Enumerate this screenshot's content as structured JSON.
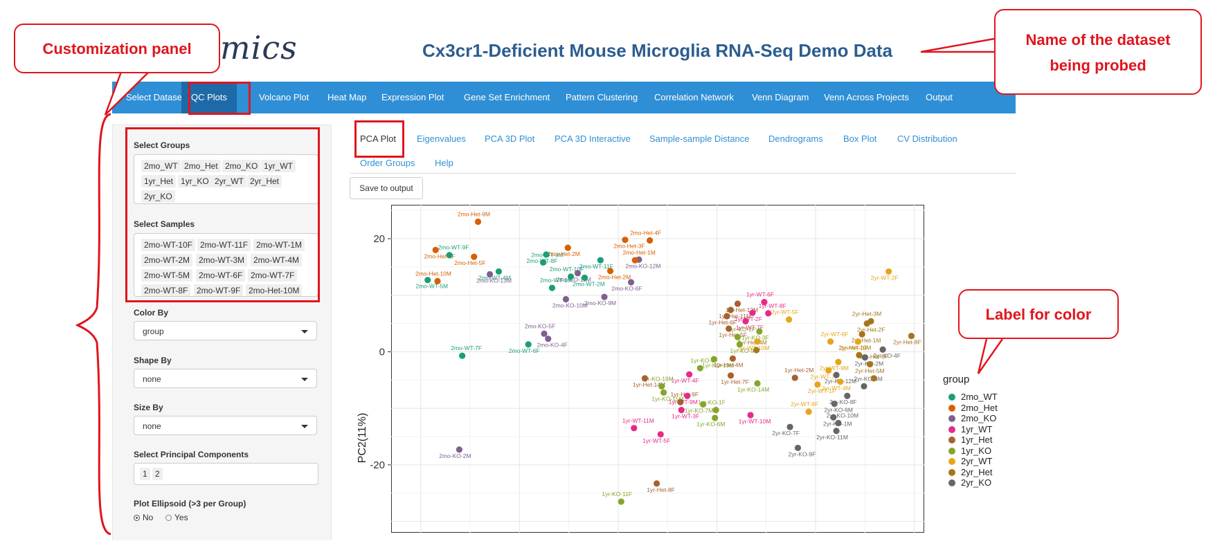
{
  "app": {
    "logo_text": "mics",
    "dataset_title": "Cx3cr1-Deficient Mouse Microglia RNA-Seq Demo Data"
  },
  "nav": {
    "items": [
      {
        "label": "Select Dataset"
      },
      {
        "label": "QC Plots"
      },
      {
        "label": "Volcano Plot"
      },
      {
        "label": "Heat Map"
      },
      {
        "label": "Expression Plot"
      },
      {
        "label": "Gene Set Enrichment"
      },
      {
        "label": "Pattern Clustering"
      },
      {
        "label": "Correlation Network"
      },
      {
        "label": "Venn Diagram"
      },
      {
        "label": "Venn Across Projects"
      },
      {
        "label": "Output"
      }
    ]
  },
  "sidebar": {
    "groups_label": "Select Groups",
    "groups": [
      "2mo_WT",
      "2mo_Het",
      "2mo_KO",
      "1yr_WT",
      "1yr_Het",
      "1yr_KO",
      "2yr_WT",
      "2yr_Het",
      "2yr_KO"
    ],
    "samples_label": "Select Samples",
    "samples": [
      "2mo-WT-10F",
      "2mo-WT-11F",
      "2mo-WT-1M",
      "2mo-WT-2M",
      "2mo-WT-3M",
      "2mo-WT-4M",
      "2mo-WT-5M",
      "2mo-WT-6F",
      "2mo-WT-7F",
      "2mo-WT-8F",
      "2mo-WT-9F",
      "2mo-Het-10M"
    ],
    "color_by_label": "Color By",
    "color_by_value": "group",
    "shape_by_label": "Shape By",
    "shape_by_value": "none",
    "size_by_label": "Size By",
    "size_by_value": "none",
    "pc_label": "Select Principal Components",
    "pc_values": [
      "1",
      "2"
    ],
    "ellipsoid_label": "Plot Ellipsoid (>3 per Group)",
    "ellipsoid_no": "No",
    "ellipsoid_yes": "Yes",
    "ellipsoid_selected": "No"
  },
  "tabs": {
    "items": [
      {
        "label": "PCA Plot"
      },
      {
        "label": "Eigenvalues"
      },
      {
        "label": "PCA 3D Plot"
      },
      {
        "label": "PCA 3D Interactive"
      },
      {
        "label": "Sample-sample Distance"
      },
      {
        "label": "Dendrograms"
      },
      {
        "label": "Box Plot"
      },
      {
        "label": "CV Distribution"
      },
      {
        "label": "Order Groups"
      },
      {
        "label": "Help"
      }
    ]
  },
  "save_button": "Save to output",
  "annotations": {
    "customization": "Customization panel",
    "dataset_name": "Name of the dataset being probed",
    "color_label": "Label for color"
  },
  "colors": {
    "accent": "#2f8fd6",
    "annotation": "#e0151d"
  },
  "chart_data": {
    "type": "scatter",
    "ylabel": "PC2(11%)",
    "xlabel": "",
    "ylim": [
      -32,
      26
    ],
    "yticks": [
      20,
      0,
      -20
    ],
    "legend_title": "group",
    "legend_position": "right",
    "groups": [
      {
        "name": "2mo_WT",
        "color": "#1b9e77"
      },
      {
        "name": "2mo_Het",
        "color": "#d95f02"
      },
      {
        "name": "2mo_KO",
        "color": "#7f5f8f"
      },
      {
        "name": "1yr_WT",
        "color": "#e7298a"
      },
      {
        "name": "1yr_Het",
        "color": "#a6612f"
      },
      {
        "name": "1yr_KO",
        "color": "#84a62a"
      },
      {
        "name": "2yr_WT",
        "color": "#e6a51b"
      },
      {
        "name": "2yr_Het",
        "color": "#a6761d"
      },
      {
        "name": "2yr_KO",
        "color": "#666666"
      }
    ],
    "points": [
      {
        "label": "2mo-Het-9M",
        "group": "2mo_Het",
        "x": -14.2,
        "y": 23.0
      },
      {
        "label": "2mo-Het-6F",
        "group": "2mo_Het",
        "x": -18.5,
        "y": 18.0
      },
      {
        "label": "2mo-Het-5F",
        "group": "2mo_Het",
        "x": -14.6,
        "y": 16.8
      },
      {
        "label": "2mo-WT-9F",
        "group": "2mo_WT",
        "x": -17.1,
        "y": 17.1
      },
      {
        "label": "2mo-WT-4M",
        "group": "2mo_WT",
        "x": -12.1,
        "y": 14.2
      },
      {
        "label": "2mo-WT-5M",
        "group": "2mo_WT",
        "x": -19.3,
        "y": 12.7
      },
      {
        "label": "2mo-Het-10M",
        "group": "2mo_Het",
        "x": -18.3,
        "y": 12.5
      },
      {
        "label": "2mo-KO-13M",
        "group": "2mo_KO",
        "x": -13.0,
        "y": 13.7
      },
      {
        "label": "2mo-WT-8F",
        "group": "2mo_WT",
        "x": -7.3,
        "y": 17.2
      },
      {
        "label": "2mo-WT-3M",
        "group": "2mo_WT",
        "x": -7.6,
        "y": 15.8
      },
      {
        "label": "2mo-Het-2M",
        "group": "2mo_Het",
        "x": -5.1,
        "y": 18.4
      },
      {
        "label": "2mo-Het-3F",
        "group": "2mo_Het",
        "x": 0.7,
        "y": 19.8
      },
      {
        "label": "2mo-Het-4F",
        "group": "2mo_Het",
        "x": 3.2,
        "y": 19.7
      },
      {
        "label": "2mo-KO-12M",
        "group": "2mo_KO",
        "x": 2.1,
        "y": 16.3
      },
      {
        "label": "2mo-WT-11F",
        "group": "2mo_WT",
        "x": -1.8,
        "y": 16.2
      },
      {
        "label": "2mo-Het-1M",
        "group": "2mo_Het",
        "x": 1.7,
        "y": 16.2
      },
      {
        "label": "2mo-KO-11M",
        "group": "2mo_KO",
        "x": -4.1,
        "y": 13.9
      },
      {
        "label": "2mo-Het-2M",
        "group": "2mo_Het",
        "x": -0.8,
        "y": 14.3
      },
      {
        "label": "2mo-WT-10F",
        "group": "2mo_WT",
        "x": -4.8,
        "y": 13.3
      },
      {
        "label": "2mo-WT-2M",
        "group": "2mo_WT",
        "x": -3.4,
        "y": 13.1
      },
      {
        "label": "2mo-KO-6F",
        "group": "2mo_KO",
        "x": 1.3,
        "y": 12.3
      },
      {
        "label": "2mo-WT-1M",
        "group": "2mo_WT",
        "x": -6.7,
        "y": 11.3
      },
      {
        "label": "2mo-KO-9M",
        "group": "2mo_KO",
        "x": -1.4,
        "y": 9.7
      },
      {
        "label": "2mo-KO-10M",
        "group": "2mo_KO",
        "x": -5.3,
        "y": 9.3
      },
      {
        "label": "2mo-KO-5F",
        "group": "2mo_KO",
        "x": -7.5,
        "y": 3.2
      },
      {
        "label": "2mo-KO-4F",
        "group": "2mo_KO",
        "x": -7.1,
        "y": 2.3
      },
      {
        "label": "2mo-WT-6F",
        "group": "2mo_WT",
        "x": -9.1,
        "y": 1.3
      },
      {
        "label": "2mo-WT-7F",
        "group": "2mo_WT",
        "x": -15.8,
        "y": -0.7
      },
      {
        "label": "2mo-KO-2M",
        "group": "2mo_KO",
        "x": -16.1,
        "y": -17.3
      },
      {
        "label": "1yr-Het-12M",
        "group": "1yr_Het",
        "x": 12.1,
        "y": 8.5
      },
      {
        "label": "1yr-WT-6F",
        "group": "1yr_WT",
        "x": 14.8,
        "y": 8.8
      },
      {
        "label": "1yr-Het-11M",
        "group": "1yr_Het",
        "x": 11.4,
        "y": 7.4
      },
      {
        "label": "1yr-WT-2F",
        "group": "1yr_WT",
        "x": 13.6,
        "y": 6.9
      },
      {
        "label": "1yr-WT-8F",
        "group": "1yr_WT",
        "x": 15.2,
        "y": 6.8
      },
      {
        "label": "1yr-Het-6F",
        "group": "1yr_Het",
        "x": 11.0,
        "y": 6.3
      },
      {
        "label": "1yr-WT-7F",
        "group": "1yr_WT",
        "x": 12.9,
        "y": 5.4
      },
      {
        "label": "2yr-WT-5F",
        "group": "2yr_WT",
        "x": 17.3,
        "y": 5.7
      },
      {
        "label": "1yr-Het-5F",
        "group": "1yr_Het",
        "x": 11.2,
        "y": 4.1
      },
      {
        "label": "1yr-KO-3F",
        "group": "1yr_KO",
        "x": 14.3,
        "y": 3.6
      },
      {
        "label": "1yr-KO-2F",
        "group": "1yr_KO",
        "x": 12.1,
        "y": 2.6
      },
      {
        "label": "2yr-WT-10M",
        "group": "2yr_WT",
        "x": 14.1,
        "y": 1.8
      },
      {
        "label": "1yr-KO-9F",
        "group": "1yr_KO",
        "x": 12.3,
        "y": 1.3
      },
      {
        "label": "2yr-Het-4M",
        "group": "2yr_Het",
        "x": 14.0,
        "y": 0.3
      },
      {
        "label": "1yr-KO-13M",
        "group": "1yr_KO",
        "x": 9.7,
        "y": -1.3
      },
      {
        "label": "1yr-Het-4M",
        "group": "1yr_Het",
        "x": 11.6,
        "y": -1.2
      },
      {
        "label": "1yr-KO-8F",
        "group": "1yr_KO",
        "x": 8.3,
        "y": -2.9
      },
      {
        "label": "1yr-WT-4F",
        "group": "1yr_WT",
        "x": 7.2,
        "y": -4.0
      },
      {
        "label": "1yr-Het-14M",
        "group": "1yr_Het",
        "x": 2.7,
        "y": -4.7
      },
      {
        "label": "1yr-KO-16M",
        "group": "1yr_KO",
        "x": 4.4,
        "y": -6.1
      },
      {
        "label": "1yr-KO-15M",
        "group": "1yr_KO",
        "x": 4.6,
        "y": -7.2
      },
      {
        "label": "1yr-WT-9M",
        "group": "1yr_WT",
        "x": 7.0,
        "y": -7.8
      },
      {
        "label": "1yr-Het-9F",
        "group": "1yr_Het",
        "x": 6.3,
        "y": -8.9
      },
      {
        "label": "1yr-KO-7M",
        "group": "1yr_KO",
        "x": 8.6,
        "y": -9.3
      },
      {
        "label": "1yr-WT-3F",
        "group": "1yr_WT",
        "x": 6.4,
        "y": -10.3
      },
      {
        "label": "1yr-KO-1F",
        "group": "1yr_KO",
        "x": 9.9,
        "y": -10.3
      },
      {
        "label": "1yr-WT-10M",
        "group": "1yr_WT",
        "x": 13.4,
        "y": -11.2
      },
      {
        "label": "1yr-KO-6M",
        "group": "1yr_KO",
        "x": 9.8,
        "y": -11.7
      },
      {
        "label": "1yr-WT-11M",
        "group": "1yr_WT",
        "x": 1.6,
        "y": -13.5
      },
      {
        "label": "1yr-WT-5F",
        "group": "1yr_WT",
        "x": 4.3,
        "y": -14.6
      },
      {
        "label": "1yr-Het-8F",
        "group": "1yr_Het",
        "x": 3.9,
        "y": -23.3
      },
      {
        "label": "1yr-KO-11F",
        "group": "1yr_KO",
        "x": 0.3,
        "y": -26.5
      },
      {
        "label": "1yr-Het-7F",
        "group": "1yr_Het",
        "x": 11.4,
        "y": -4.2
      },
      {
        "label": "1yr-KO-14M",
        "group": "1yr_KO",
        "x": 14.1,
        "y": -5.6
      },
      {
        "label": "1yr-Het-2M",
        "group": "1yr_Het",
        "x": 17.9,
        "y": -4.6
      },
      {
        "label": "2yr-WT-2F",
        "group": "2yr_WT",
        "x": 27.4,
        "y": 14.2
      },
      {
        "label": "2yr-Het-2F",
        "group": "2yr_Het",
        "x": 25.2,
        "y": 5.0
      },
      {
        "label": "2yr-Het-3M",
        "group": "2yr_Het",
        "x": 25.6,
        "y": 5.4
      },
      {
        "label": "2yr-Het-1M",
        "group": "2yr_Het",
        "x": 24.7,
        "y": 3.1
      },
      {
        "label": "2yr-Het-8F",
        "group": "2yr_Het",
        "x": 29.7,
        "y": 2.8
      },
      {
        "label": "2yr-WT-6F",
        "group": "2yr_WT",
        "x": 21.5,
        "y": 1.8
      },
      {
        "label": "2yr-WT-3F",
        "group": "2yr_WT",
        "x": 24.3,
        "y": 1.8
      },
      {
        "label": "2yr-KO-4F",
        "group": "2yr_KO",
        "x": 26.8,
        "y": 0.4
      },
      {
        "label": "2yr-Het-10M",
        "group": "2yr_Het",
        "x": 24.4,
        "y": -0.6
      },
      {
        "label": "2yr-KO-2M",
        "group": "2yr_KO",
        "x": 25.0,
        "y": -1.0
      },
      {
        "label": "2yr-WT-9M",
        "group": "2yr_WT",
        "x": 22.3,
        "y": -1.8
      },
      {
        "label": "2yr-Het-6F",
        "group": "2yr_Het",
        "x": 25.5,
        "y": -2.2
      },
      {
        "label": "2yr-WT-7F",
        "group": "2yr_WT",
        "x": 21.3,
        "y": -3.3
      },
      {
        "label": "2yr-KO-12M",
        "group": "2yr_KO",
        "x": 22.1,
        "y": -4.1
      },
      {
        "label": "2yr-Het-5M",
        "group": "2yr_Het",
        "x": 25.9,
        "y": -4.7
      },
      {
        "label": "2yr-WT-1F",
        "group": "2yr_WT",
        "x": 20.2,
        "y": -5.8
      },
      {
        "label": "2yr-WT-4M",
        "group": "2yr_WT",
        "x": 22.5,
        "y": -5.3
      },
      {
        "label": "2yr-KO-3M",
        "group": "2yr_KO",
        "x": 24.9,
        "y": -6.1
      },
      {
        "label": "2yr-KO-8F",
        "group": "2yr_KO",
        "x": 23.2,
        "y": -7.8
      },
      {
        "label": "2yr-KO-6M",
        "group": "2yr_KO",
        "x": 21.9,
        "y": -9.2
      },
      {
        "label": "2yr-WT-8F",
        "group": "2yr_WT",
        "x": 19.3,
        "y": -10.6
      },
      {
        "label": "2yr-KO-1M",
        "group": "2yr_KO",
        "x": 21.8,
        "y": -11.6
      },
      {
        "label": "2yr-KO-7F",
        "group": "2yr_KO",
        "x": 17.4,
        "y": -13.3
      },
      {
        "label": "2yr-KO-10M",
        "group": "2yr_KO",
        "x": 22.3,
        "y": -12.6
      },
      {
        "label": "2yr-KO-11M",
        "group": "2yr_KO",
        "x": 22.1,
        "y": -14.0
      },
      {
        "label": "2yr-KO-9F",
        "group": "2yr_KO",
        "x": 18.2,
        "y": -17.0
      }
    ]
  }
}
